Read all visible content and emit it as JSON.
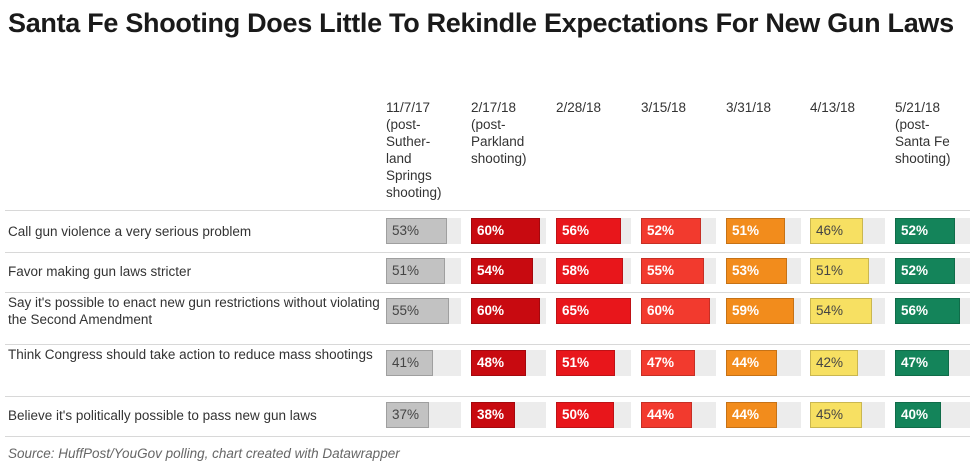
{
  "title": "Santa Fe Shooting Does Little To Rekindle Expectations For New Gun Laws",
  "source": "Source: HuffPost/YouGov polling, chart created with Datawrapper",
  "chart_data": {
    "type": "table",
    "title": "Santa Fe Shooting Does Little To Rekindle Expectations For New Gun Laws",
    "columns": [
      {
        "label": "11/7/17\n(post-\nSuther-\nland\nSprings\nshooting)",
        "color": "#c2c2c2",
        "text": "dark"
      },
      {
        "label": "2/17/18\n(post-\nParkland\nshooting)",
        "color": "#c80a10",
        "text": "light"
      },
      {
        "label": "2/28/18",
        "color": "#e8161b",
        "text": "light"
      },
      {
        "label": "3/15/18",
        "color": "#f23a2e",
        "text": "light"
      },
      {
        "label": "3/31/18",
        "color": "#f28c1c",
        "text": "light"
      },
      {
        "label": "4/13/18",
        "color": "#f7e062",
        "text": "dark"
      },
      {
        "label": "5/21/18\n(post-\nSanta Fe\nshooting)",
        "color": "#14845a",
        "text": "light"
      }
    ],
    "rows": [
      {
        "label": "Call gun violence a very serious problem",
        "values": [
          53,
          60,
          56,
          52,
          51,
          46,
          52
        ]
      },
      {
        "label": "Favor making gun laws stricter",
        "values": [
          51,
          54,
          58,
          55,
          53,
          51,
          52
        ]
      },
      {
        "label": "Say it's possible to enact new gun restrictions without violating the Second Amendment",
        "values": [
          55,
          60,
          65,
          60,
          59,
          54,
          56
        ]
      },
      {
        "label": "Think Congress should take action to reduce mass shootings",
        "values": [
          41,
          48,
          51,
          47,
          44,
          42,
          47
        ]
      },
      {
        "label": "Believe it's politically possible to pass new gun laws",
        "values": [
          37,
          38,
          50,
          44,
          44,
          45,
          40
        ]
      }
    ],
    "value_suffix": "%",
    "scale_max": 65
  }
}
